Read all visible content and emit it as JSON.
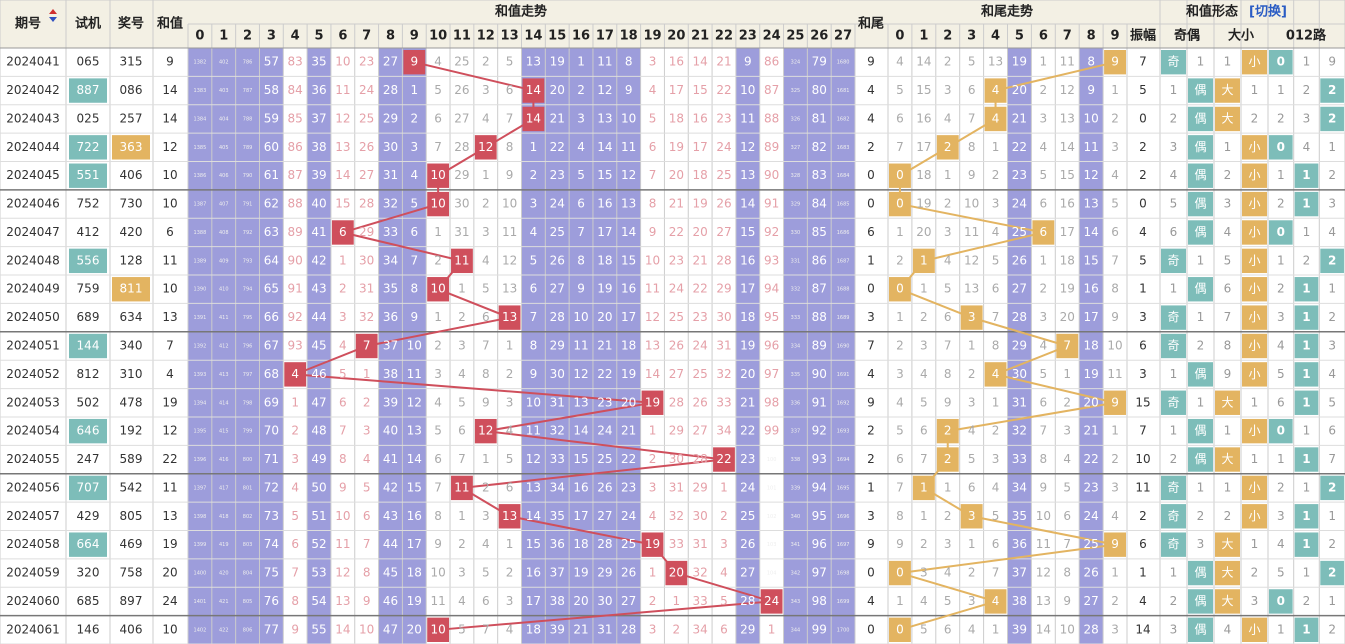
{
  "header": {
    "issue": "期号",
    "test": "试机",
    "prize": "奖号",
    "sum": "和值",
    "sum_trend": "和值走势",
    "tail": "和尾",
    "tail_trend": "和尾走势",
    "form": "和值形态",
    "switch": "[切换]",
    "amp": "振幅",
    "odd_even": "奇偶",
    "big_small": "大小",
    "road": "012路",
    "sum_cols": [
      0,
      1,
      2,
      3,
      4,
      5,
      6,
      7,
      8,
      9,
      10,
      11,
      12,
      13,
      14,
      15,
      16,
      17,
      18,
      19,
      20,
      21,
      22,
      23,
      24,
      25,
      26,
      27
    ],
    "tail_cols": [
      0,
      1,
      2,
      3,
      4,
      5,
      6,
      7,
      8,
      9
    ]
  },
  "rows": [
    {
      "issue": "2024041",
      "test": "065",
      "prize": "315",
      "sum": 9,
      "sum_trend": [
        1382,
        402,
        786,
        57,
        83,
        35,
        10,
        23,
        27,
        9,
        4,
        25,
        2,
        5,
        13,
        19,
        1,
        11,
        8,
        3,
        16,
        14,
        21,
        9,
        86,
        324,
        79,
        1680
      ],
      "tail": 9,
      "tail_trend": [
        4,
        14,
        2,
        5,
        13,
        19,
        1,
        11,
        8,
        9
      ],
      "amp": 7,
      "odd_even": [
        "奇",
        1
      ],
      "big_small": [
        1,
        "小"
      ],
      "road": [
        0,
        1,
        9
      ]
    },
    {
      "issue": "2024042",
      "test": "887",
      "test_mark": "teal",
      "prize": "086",
      "sum": 14,
      "sum_trend": [
        1383,
        403,
        787,
        58,
        84,
        36,
        11,
        24,
        28,
        1,
        5,
        26,
        3,
        6,
        14,
        20,
        2,
        12,
        9,
        4,
        17,
        15,
        22,
        10,
        87,
        325,
        80,
        1681
      ],
      "tail": 4,
      "tail_trend": [
        5,
        15,
        3,
        6,
        4,
        20,
        2,
        12,
        9,
        1
      ],
      "amp": 5,
      "odd_even": [
        1,
        "偶"
      ],
      "big_small": [
        "大",
        1
      ],
      "road": [
        1,
        2,
        2
      ]
    },
    {
      "issue": "2024043",
      "test": "025",
      "prize": "257",
      "sum": 14,
      "sum_trend": [
        1384,
        404,
        788,
        59,
        85,
        37,
        12,
        25,
        29,
        2,
        6,
        27,
        4,
        7,
        14,
        21,
        3,
        13,
        10,
        5,
        18,
        16,
        23,
        11,
        88,
        326,
        81,
        1682
      ],
      "tail": 4,
      "tail_trend": [
        6,
        16,
        4,
        7,
        4,
        21,
        3,
        13,
        10,
        2
      ],
      "amp": 0,
      "odd_even": [
        2,
        "偶"
      ],
      "big_small": [
        "大",
        2
      ],
      "road": [
        2,
        3,
        2
      ]
    },
    {
      "issue": "2024044",
      "test": "722",
      "test_mark": "teal",
      "prize": "363",
      "prize_mark": "orange",
      "sum": 12,
      "sum_trend": [
        1385,
        405,
        789,
        60,
        86,
        38,
        13,
        26,
        30,
        3,
        7,
        28,
        12,
        8,
        1,
        22,
        4,
        14,
        11,
        6,
        19,
        17,
        24,
        12,
        89,
        327,
        82,
        1683
      ],
      "tail": 2,
      "tail_trend": [
        7,
        17,
        2,
        8,
        1,
        22,
        4,
        14,
        11,
        3
      ],
      "amp": 2,
      "odd_even": [
        3,
        "偶"
      ],
      "big_small": [
        1,
        "小"
      ],
      "road": [
        0,
        4,
        1
      ]
    },
    {
      "issue": "2024045",
      "test": "551",
      "test_mark": "teal",
      "prize": "406",
      "sum": 10,
      "sum_trend": [
        1386,
        406,
        790,
        61,
        87,
        39,
        14,
        27,
        31,
        4,
        10,
        29,
        1,
        9,
        2,
        23,
        5,
        15,
        12,
        7,
        20,
        18,
        25,
        13,
        90,
        328,
        83,
        1684
      ],
      "tail": 0,
      "tail_trend": [
        0,
        18,
        1,
        9,
        2,
        23,
        5,
        15,
        12,
        4
      ],
      "amp": 2,
      "odd_even": [
        4,
        "偶"
      ],
      "big_small": [
        2,
        "小"
      ],
      "road": [
        1,
        1,
        2
      ]
    },
    {
      "issue": "2024046",
      "test": "752",
      "prize": "730",
      "sum": 10,
      "sum_trend": [
        1387,
        407,
        791,
        62,
        88,
        40,
        15,
        28,
        32,
        5,
        10,
        30,
        2,
        10,
        3,
        24,
        6,
        16,
        13,
        8,
        21,
        19,
        26,
        14,
        91,
        329,
        84,
        1685
      ],
      "tail": 0,
      "tail_trend": [
        0,
        19,
        2,
        10,
        3,
        24,
        6,
        16,
        13,
        5
      ],
      "amp": 0,
      "odd_even": [
        5,
        "偶"
      ],
      "big_small": [
        3,
        "小"
      ],
      "road": [
        2,
        1,
        3
      ]
    },
    {
      "issue": "2024047",
      "test": "412",
      "prize": "420",
      "sum": 6,
      "sum_trend": [
        1388,
        408,
        792,
        63,
        89,
        41,
        6,
        29,
        33,
        6,
        1,
        31,
        3,
        11,
        4,
        25,
        7,
        17,
        14,
        9,
        22,
        20,
        27,
        15,
        92,
        330,
        85,
        1686
      ],
      "tail": 6,
      "tail_trend": [
        1,
        20,
        3,
        11,
        4,
        25,
        6,
        17,
        14,
        6
      ],
      "amp": 4,
      "odd_even": [
        6,
        "偶"
      ],
      "big_small": [
        4,
        "小"
      ],
      "road": [
        0,
        1,
        4
      ]
    },
    {
      "issue": "2024048",
      "test": "556",
      "test_mark": "teal",
      "prize": "128",
      "sum": 11,
      "sum_trend": [
        1389,
        409,
        793,
        64,
        90,
        42,
        1,
        30,
        34,
        7,
        2,
        11,
        4,
        12,
        5,
        26,
        8,
        18,
        15,
        10,
        23,
        21,
        28,
        16,
        93,
        331,
        86,
        1687
      ],
      "tail": 1,
      "tail_trend": [
        2,
        1,
        4,
        12,
        5,
        26,
        1,
        18,
        15,
        7
      ],
      "amp": 5,
      "odd_even": [
        "奇",
        1
      ],
      "big_small": [
        5,
        "小"
      ],
      "road": [
        1,
        2,
        2
      ]
    },
    {
      "issue": "2024049",
      "test": "759",
      "prize": "811",
      "prize_mark": "orange",
      "sum": 10,
      "sum_trend": [
        1390,
        410,
        794,
        65,
        91,
        43,
        2,
        31,
        35,
        8,
        10,
        1,
        5,
        13,
        6,
        27,
        9,
        19,
        16,
        11,
        24,
        22,
        29,
        17,
        94,
        332,
        87,
        1688
      ],
      "tail": 0,
      "tail_trend": [
        0,
        1,
        5,
        13,
        6,
        27,
        2,
        19,
        16,
        8
      ],
      "amp": 1,
      "odd_even": [
        1,
        "偶"
      ],
      "big_small": [
        6,
        "小"
      ],
      "road": [
        2,
        1,
        1
      ]
    },
    {
      "issue": "2024050",
      "test": "689",
      "prize": "634",
      "sum": 13,
      "sum_trend": [
        1391,
        411,
        795,
        66,
        92,
        44,
        3,
        32,
        36,
        9,
        1,
        2,
        6,
        13,
        7,
        28,
        10,
        20,
        17,
        12,
        25,
        23,
        30,
        18,
        95,
        333,
        88,
        1689
      ],
      "tail": 3,
      "tail_trend": [
        1,
        2,
        6,
        3,
        7,
        28,
        3,
        20,
        17,
        9
      ],
      "amp": 3,
      "odd_even": [
        "奇",
        1
      ],
      "big_small": [
        7,
        "小"
      ],
      "road": [
        3,
        1,
        2
      ]
    },
    {
      "issue": "2024051",
      "test": "144",
      "test_mark": "teal",
      "prize": "340",
      "sum": 7,
      "sum_trend": [
        1392,
        412,
        796,
        67,
        93,
        45,
        4,
        7,
        37,
        10,
        2,
        3,
        7,
        1,
        8,
        29,
        11,
        21,
        18,
        13,
        26,
        24,
        31,
        19,
        96,
        334,
        89,
        1690
      ],
      "tail": 7,
      "tail_trend": [
        2,
        3,
        7,
        1,
        8,
        29,
        4,
        7,
        18,
        10
      ],
      "amp": 6,
      "odd_even": [
        "奇",
        2
      ],
      "big_small": [
        8,
        "小"
      ],
      "road": [
        4,
        1,
        3
      ]
    },
    {
      "issue": "2024052",
      "test": "812",
      "prize": "310",
      "sum": 4,
      "sum_trend": [
        1393,
        413,
        797,
        68,
        4,
        46,
        5,
        1,
        38,
        11,
        3,
        4,
        8,
        2,
        9,
        30,
        12,
        22,
        19,
        14,
        27,
        25,
        32,
        20,
        97,
        335,
        90,
        1691
      ],
      "tail": 4,
      "tail_trend": [
        3,
        4,
        8,
        2,
        4,
        30,
        5,
        1,
        19,
        11
      ],
      "amp": 3,
      "odd_even": [
        1,
        "偶"
      ],
      "big_small": [
        9,
        "小"
      ],
      "road": [
        5,
        1,
        4
      ]
    },
    {
      "issue": "2024053",
      "test": "502",
      "prize": "478",
      "sum": 19,
      "sum_trend": [
        1394,
        414,
        798,
        69,
        1,
        47,
        6,
        2,
        39,
        12,
        4,
        5,
        9,
        3,
        10,
        31,
        13,
        23,
        20,
        19,
        28,
        26,
        33,
        21,
        98,
        336,
        91,
        1692
      ],
      "tail": 9,
      "tail_trend": [
        4,
        5,
        9,
        3,
        1,
        31,
        6,
        2,
        20,
        9
      ],
      "amp": 15,
      "odd_even": [
        "奇",
        1
      ],
      "big_small": [
        "大",
        1
      ],
      "road": [
        6,
        1,
        5
      ]
    },
    {
      "issue": "2024054",
      "test": "646",
      "test_mark": "teal",
      "prize": "192",
      "sum": 12,
      "sum_trend": [
        1395,
        415,
        799,
        70,
        2,
        48,
        7,
        3,
        40,
        13,
        5,
        6,
        12,
        4,
        11,
        32,
        14,
        24,
        21,
        1,
        29,
        27,
        34,
        22,
        99,
        337,
        92,
        1693
      ],
      "tail": 2,
      "tail_trend": [
        5,
        6,
        2,
        4,
        2,
        32,
        7,
        3,
        21,
        1
      ],
      "amp": 7,
      "odd_even": [
        1,
        "偶"
      ],
      "big_small": [
        1,
        "小"
      ],
      "road": [
        0,
        1,
        6
      ]
    },
    {
      "issue": "2024055",
      "test": "247",
      "prize": "589",
      "sum": 22,
      "sum_trend": [
        1396,
        416,
        800,
        71,
        3,
        49,
        8,
        4,
        41,
        14,
        6,
        7,
        1,
        5,
        12,
        33,
        15,
        25,
        22,
        2,
        30,
        28,
        22,
        23,
        100,
        338,
        93,
        1694
      ],
      "tail": 2,
      "tail_trend": [
        6,
        7,
        2,
        5,
        3,
        33,
        8,
        4,
        22,
        2
      ],
      "amp": 10,
      "odd_even": [
        2,
        "偶"
      ],
      "big_small": [
        "大",
        1
      ],
      "road": [
        1,
        1,
        7
      ]
    },
    {
      "issue": "2024056",
      "test": "707",
      "test_mark": "teal",
      "prize": "542",
      "sum": 11,
      "sum_trend": [
        1397,
        417,
        801,
        72,
        4,
        50,
        9,
        5,
        42,
        15,
        7,
        11,
        2,
        6,
        13,
        34,
        16,
        26,
        23,
        3,
        31,
        29,
        1,
        24,
        101,
        339,
        94,
        1695
      ],
      "tail": 1,
      "tail_trend": [
        7,
        1,
        1,
        6,
        4,
        34,
        9,
        5,
        23,
        3
      ],
      "amp": 11,
      "odd_even": [
        "奇",
        1
      ],
      "big_small": [
        1,
        "小"
      ],
      "road": [
        2,
        1,
        2
      ]
    },
    {
      "issue": "2024057",
      "test": "429",
      "prize": "805",
      "sum": 13,
      "sum_trend": [
        1398,
        418,
        802,
        73,
        5,
        51,
        10,
        6,
        43,
        16,
        8,
        1,
        3,
        13,
        14,
        35,
        17,
        27,
        24,
        4,
        32,
        30,
        2,
        25,
        102,
        340,
        95,
        1696
      ],
      "tail": 3,
      "tail_trend": [
        8,
        1,
        2,
        3,
        5,
        35,
        10,
        6,
        24,
        4
      ],
      "amp": 2,
      "odd_even": [
        "奇",
        2
      ],
      "big_small": [
        2,
        "小"
      ],
      "road": [
        3,
        1,
        1
      ]
    },
    {
      "issue": "2024058",
      "test": "664",
      "test_mark": "teal",
      "prize": "469",
      "sum": 19,
      "sum_trend": [
        1399,
        419,
        803,
        74,
        6,
        52,
        11,
        7,
        44,
        17,
        9,
        2,
        4,
        1,
        15,
        36,
        18,
        28,
        25,
        19,
        33,
        31,
        3,
        26,
        103,
        341,
        96,
        1697
      ],
      "tail": 9,
      "tail_trend": [
        9,
        2,
        3,
        1,
        6,
        36,
        11,
        7,
        25,
        9
      ],
      "amp": 6,
      "odd_even": [
        "奇",
        3
      ],
      "big_small": [
        "大",
        1
      ],
      "road": [
        4,
        1,
        2
      ]
    },
    {
      "issue": "2024059",
      "test": "320",
      "prize": "758",
      "sum": 20,
      "sum_trend": [
        1400,
        420,
        804,
        75,
        7,
        53,
        12,
        8,
        45,
        18,
        10,
        3,
        5,
        2,
        16,
        37,
        19,
        29,
        26,
        1,
        20,
        32,
        4,
        27,
        104,
        342,
        97,
        1698
      ],
      "tail": 0,
      "tail_trend": [
        0,
        3,
        4,
        2,
        7,
        37,
        12,
        8,
        26,
        1
      ],
      "amp": 1,
      "odd_even": [
        1,
        "偶"
      ],
      "big_small": [
        "大",
        2
      ],
      "road": [
        5,
        1,
        2
      ]
    },
    {
      "issue": "2024060",
      "test": "685",
      "prize": "897",
      "sum": 24,
      "sum_trend": [
        1401,
        421,
        805,
        76,
        8,
        54,
        13,
        9,
        46,
        19,
        11,
        4,
        6,
        3,
        17,
        38,
        20,
        30,
        27,
        2,
        1,
        33,
        5,
        28,
        24,
        343,
        98,
        1699
      ],
      "tail": 4,
      "tail_trend": [
        1,
        4,
        5,
        3,
        4,
        38,
        13,
        9,
        27,
        2
      ],
      "amp": 4,
      "odd_even": [
        2,
        "偶"
      ],
      "big_small": [
        "大",
        3
      ],
      "road": [
        0,
        2,
        1
      ]
    },
    {
      "issue": "2024061",
      "test": "146",
      "prize": "406",
      "sum": 10,
      "sum_trend": [
        1402,
        422,
        806,
        77,
        9,
        55,
        14,
        10,
        47,
        20,
        10,
        5,
        7,
        4,
        18,
        39,
        21,
        31,
        28,
        3,
        2,
        34,
        6,
        29,
        1,
        344,
        99,
        1700
      ],
      "tail": 0,
      "tail_trend": [
        0,
        5,
        6,
        4,
        1,
        39,
        14,
        10,
        28,
        3
      ],
      "amp": 14,
      "odd_even": [
        3,
        "偶"
      ],
      "big_small": [
        4,
        "小"
      ],
      "road": [
        1,
        1,
        2
      ]
    }
  ]
}
